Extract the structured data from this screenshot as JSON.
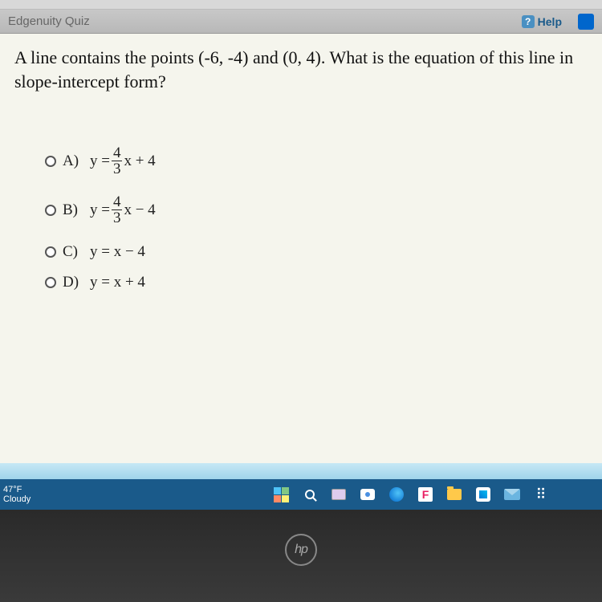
{
  "header": {
    "title": "Edgenuity Quiz",
    "help_label": "Help",
    "help_glyph": "?"
  },
  "question": {
    "text": "A line contains the points (-6, -4) and (0, 4). What is the equation of this line in slope-intercept form?"
  },
  "options": [
    {
      "letter": "A)",
      "prefix": "y =",
      "frac_num": "4",
      "frac_den": "3",
      "suffix": "x + 4",
      "has_frac": true
    },
    {
      "letter": "B)",
      "prefix": "y =",
      "frac_num": "4",
      "frac_den": "3",
      "suffix": "x − 4",
      "has_frac": true
    },
    {
      "letter": "C)",
      "prefix": "y = x − 4",
      "has_frac": false
    },
    {
      "letter": "D)",
      "prefix": "y = x + 4",
      "has_frac": false
    }
  ],
  "taskbar": {
    "temp": "47°F",
    "weather": "Cloudy",
    "f_letter": "F",
    "dropbox_glyph": "⠿"
  },
  "laptop": {
    "brand": "hp"
  },
  "colors": {
    "content_bg": "#f5f5ed",
    "header_text": "#666666",
    "help_text": "#1a5a8a",
    "taskbar_bg": "#1a5a8a",
    "question_text": "#111111"
  }
}
